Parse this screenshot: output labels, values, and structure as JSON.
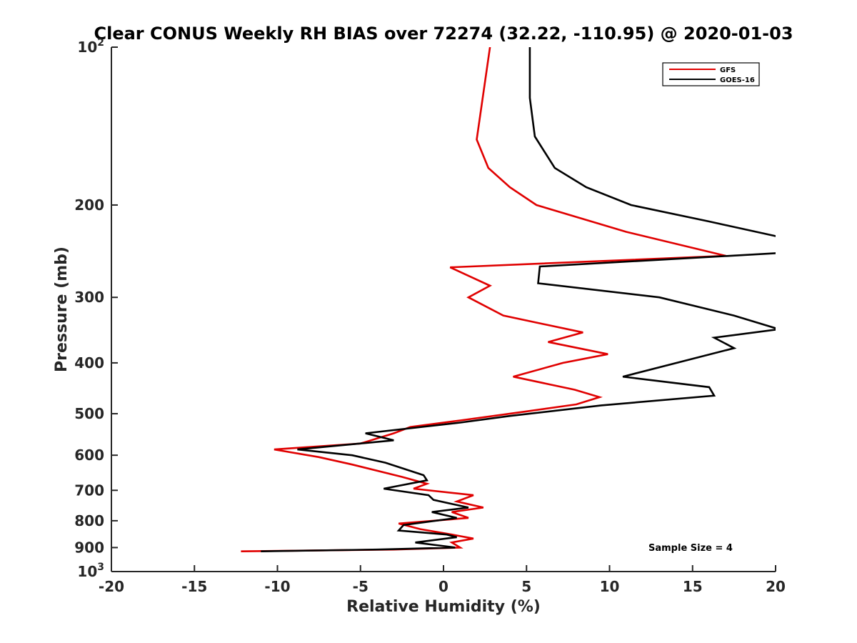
{
  "chart_data": {
    "type": "line",
    "title": "Clear CONUS Weekly RH BIAS over 72274 (32.22, -110.95) @ 2020-01-03",
    "xlabel": "Relative Humidity (%)",
    "ylabel": "Pressure (mb)",
    "xlim": [
      -20,
      20
    ],
    "ylim": [
      1000,
      100
    ],
    "y_scale": "log",
    "y_inverted": true,
    "grid": false,
    "legend_position": "top-right",
    "x_ticks": [
      "-20",
      "-15",
      "-10",
      "-5",
      "0",
      "5",
      "10",
      "15",
      "20"
    ],
    "y_ticks": [
      {
        "value": 100,
        "base": "10",
        "exp": "2"
      },
      {
        "value": 200,
        "label": "200"
      },
      {
        "value": 300,
        "label": "300"
      },
      {
        "value": 400,
        "label": "400"
      },
      {
        "value": 500,
        "label": "500"
      },
      {
        "value": 600,
        "label": "600"
      },
      {
        "value": 700,
        "label": "700"
      },
      {
        "value": 800,
        "label": "800"
      },
      {
        "value": 900,
        "label": "900"
      },
      {
        "value": 1000,
        "base": "10",
        "exp": "3"
      }
    ],
    "annotation": "Sample Size = 4",
    "series": [
      {
        "name": "GFS",
        "color": "#e00000",
        "points": [
          [
            2.8,
            100
          ],
          [
            2.0,
            150
          ],
          [
            2.7,
            170
          ],
          [
            4.0,
            185
          ],
          [
            5.6,
            200
          ],
          [
            11,
            225
          ],
          [
            17,
            250
          ],
          [
            0.4,
            263
          ],
          [
            2.8,
            285
          ],
          [
            1.5,
            300
          ],
          [
            3.6,
            325
          ],
          [
            8.4,
            350
          ],
          [
            6.3,
            365
          ],
          [
            9.9,
            385
          ],
          [
            7.2,
            400
          ],
          [
            4.2,
            425
          ],
          [
            7.9,
            450
          ],
          [
            9.4,
            465
          ],
          [
            8.0,
            480
          ],
          [
            5.0,
            495
          ],
          [
            1.0,
            515
          ],
          [
            -2.0,
            530
          ],
          [
            -3.0,
            545
          ],
          [
            -5.0,
            570
          ],
          [
            -10.2,
            585
          ],
          [
            -7.5,
            605
          ],
          [
            -5.5,
            625
          ],
          [
            -2.5,
            660
          ],
          [
            -1.0,
            680
          ],
          [
            -1.8,
            695
          ],
          [
            1.8,
            715
          ],
          [
            0.8,
            735
          ],
          [
            2.4,
            755
          ],
          [
            0.5,
            770
          ],
          [
            1.5,
            790
          ],
          [
            -2.7,
            810
          ],
          [
            -1.4,
            830
          ],
          [
            0.5,
            850
          ],
          [
            1.8,
            865
          ],
          [
            0.5,
            880
          ],
          [
            1.0,
            900
          ],
          [
            -3.0,
            908
          ],
          [
            -12.2,
            915
          ]
        ]
      },
      {
        "name": "GOES-16",
        "color": "#000000",
        "points": [
          [
            5.2,
            100
          ],
          [
            5.2,
            125
          ],
          [
            5.5,
            148
          ],
          [
            6.7,
            170
          ],
          [
            8.6,
            185
          ],
          [
            11.3,
            200
          ],
          [
            16.0,
            215
          ],
          [
            20.2,
            230
          ],
          [
            20.2,
            247
          ],
          [
            5.8,
            262
          ],
          [
            5.7,
            282
          ],
          [
            13.0,
            300
          ],
          [
            17.5,
            325
          ],
          [
            20.2,
            345
          ],
          [
            16.3,
            358
          ],
          [
            17.5,
            375
          ],
          [
            10.8,
            425
          ],
          [
            16.0,
            445
          ],
          [
            16.3,
            462
          ],
          [
            9.5,
            482
          ],
          [
            4.0,
            505
          ],
          [
            1.0,
            520
          ],
          [
            -4.7,
            545
          ],
          [
            -3.0,
            562
          ],
          [
            -8.8,
            585
          ],
          [
            -5.5,
            600
          ],
          [
            -3.5,
            620
          ],
          [
            -1.2,
            655
          ],
          [
            -1.0,
            670
          ],
          [
            -3.6,
            695
          ],
          [
            -0.9,
            715
          ],
          [
            -0.6,
            730
          ],
          [
            1.5,
            755
          ],
          [
            -0.7,
            770
          ],
          [
            0.8,
            790
          ],
          [
            -2.4,
            815
          ],
          [
            -2.7,
            835
          ],
          [
            0.2,
            850
          ],
          [
            0.8,
            860
          ],
          [
            -1.7,
            880
          ],
          [
            0.7,
            900
          ],
          [
            -4.0,
            908
          ],
          [
            -11.0,
            915
          ]
        ]
      }
    ]
  }
}
